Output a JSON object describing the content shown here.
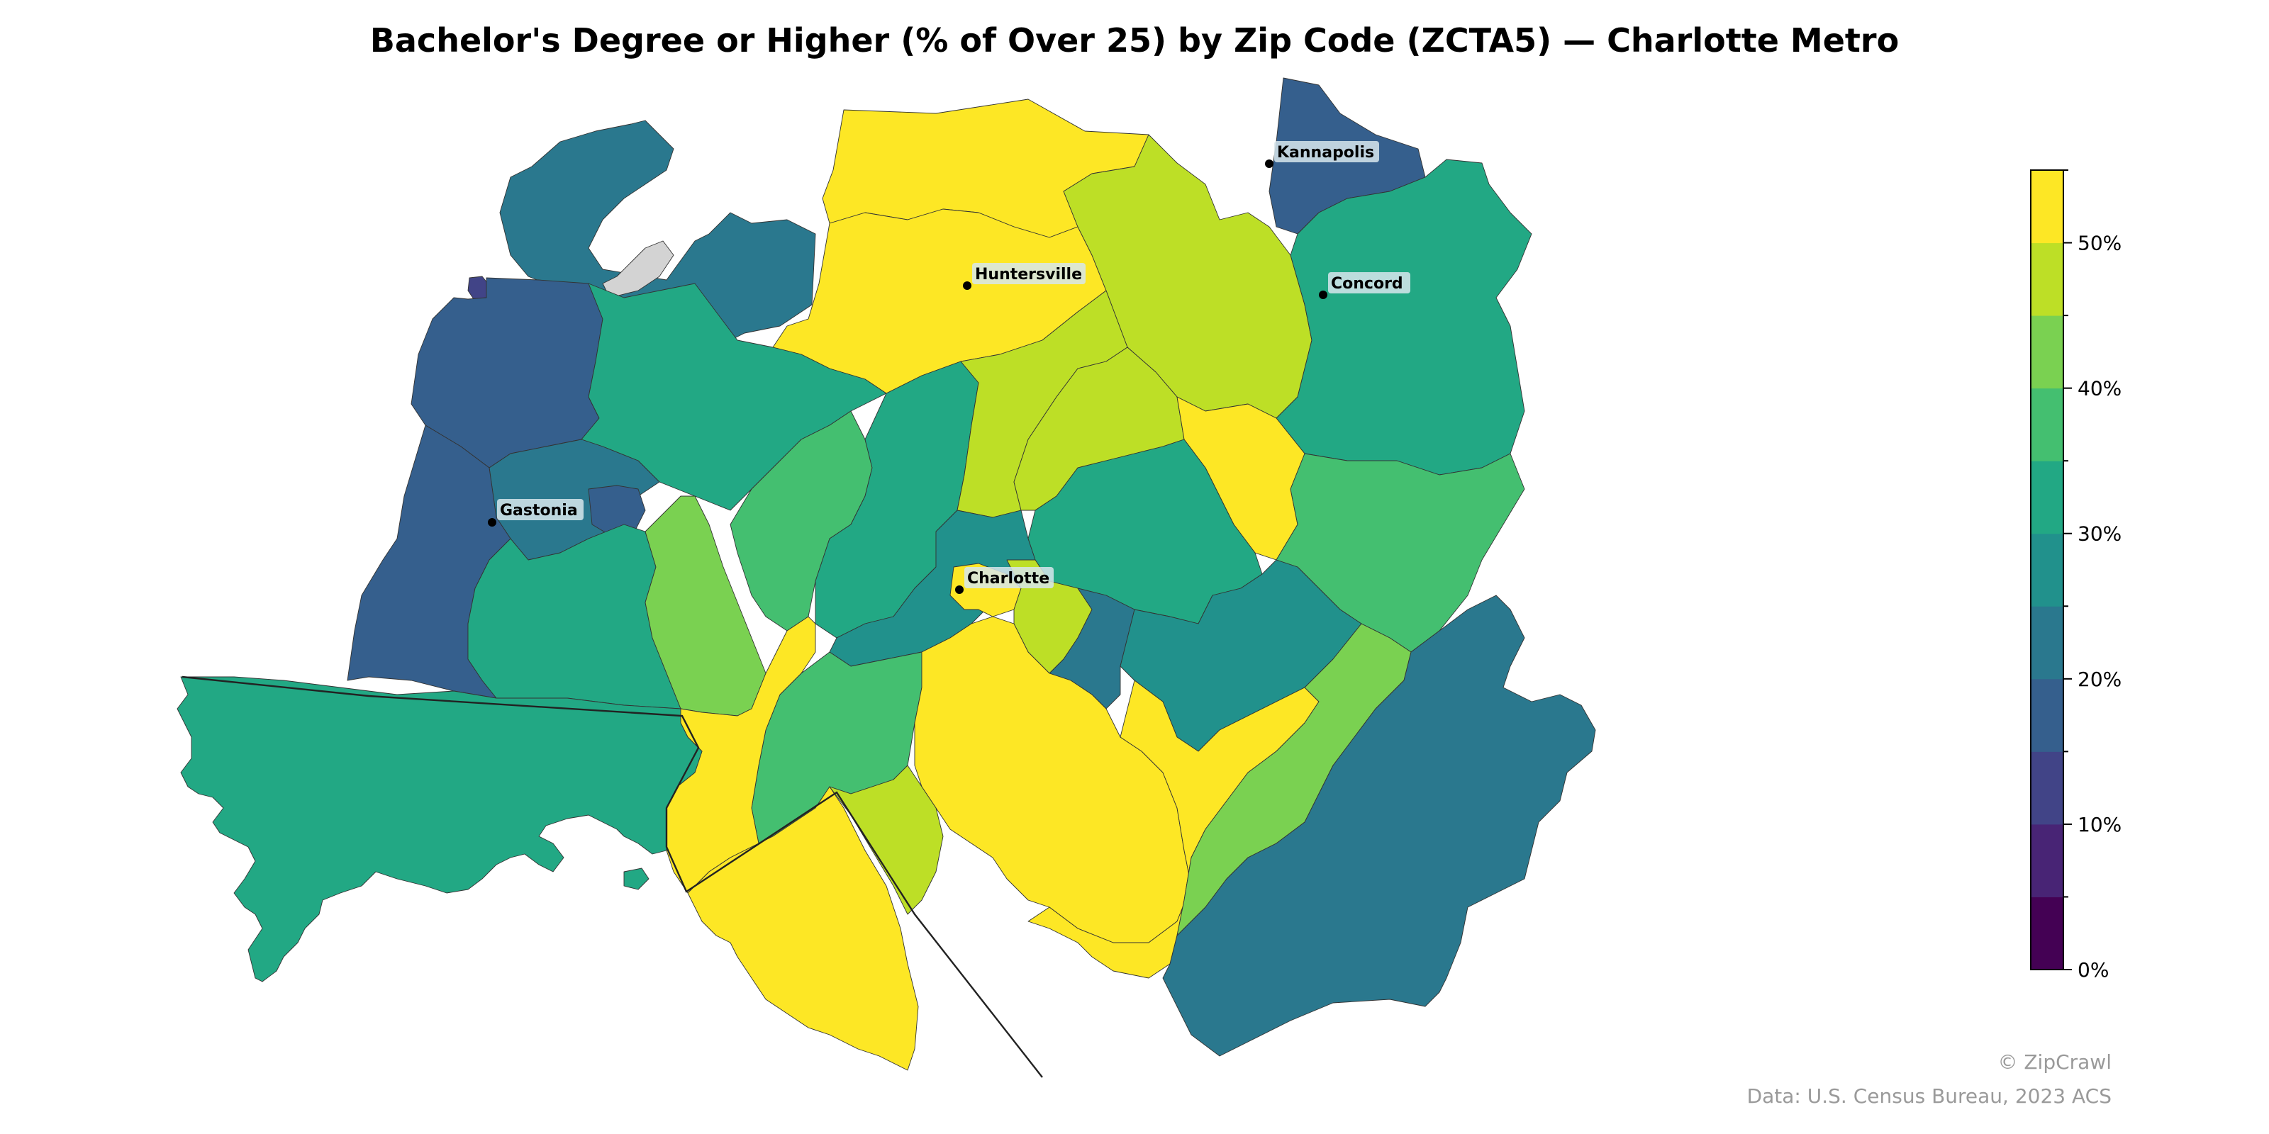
{
  "title": "Bachelor's Degree or Higher (% of Over 25) by Zip Code (ZCTA5) — Charlotte Metro",
  "credit": "© ZipCrawl",
  "source": "Data: U.S. Census Bureau, 2023 ACS",
  "colorbar": {
    "min": 0,
    "max": 55,
    "step": 5,
    "colors": [
      "#440154",
      "#482475",
      "#414487",
      "#355f8d",
      "#2a788e",
      "#21918c",
      "#22a884",
      "#44bf70",
      "#7ad151",
      "#bddf26",
      "#fde725"
    ],
    "tick_labels": [
      "0%",
      "10%",
      "20%",
      "30%",
      "40%",
      "50%"
    ]
  },
  "no_data_color": "#d3d3d3",
  "cities": [
    {
      "name": "Kannapolis"
    },
    {
      "name": "Huntersville"
    },
    {
      "name": "Concord"
    },
    {
      "name": "Gastonia"
    },
    {
      "name": "Charlotte"
    }
  ],
  "regions": [
    {
      "name": "north-lake-norman",
      "value": 53
    },
    {
      "name": "huntersville-south",
      "value": 54
    },
    {
      "name": "davidson-east",
      "value": 45
    },
    {
      "name": "kannapolis-north",
      "value": 19
    },
    {
      "name": "concord-east",
      "value": 32
    },
    {
      "name": "northwest-lincoln",
      "value": 23
    },
    {
      "name": "no-data-zone",
      "value": null
    },
    {
      "name": "small-purple-zone",
      "value": 13
    },
    {
      "name": "west-gaston-north",
      "value": 18
    },
    {
      "name": "mount-holly",
      "value": 31
    },
    {
      "name": "gastonia-center",
      "value": 22
    },
    {
      "name": "gastonia-east-small",
      "value": 15
    },
    {
      "name": "west-gaston-south",
      "value": 17
    },
    {
      "name": "belmont",
      "value": 32
    },
    {
      "name": "belmont-east",
      "value": 43
    },
    {
      "name": "west-charlotte",
      "value": 39
    },
    {
      "name": "northwest-charlotte",
      "value": 30
    },
    {
      "name": "university-west",
      "value": 48
    },
    {
      "name": "university-east",
      "value": 48
    },
    {
      "name": "harrisburg",
      "value": 54
    },
    {
      "name": "northeast-charlotte",
      "value": 31
    },
    {
      "name": "concord-southeast",
      "value": 39
    },
    {
      "name": "airport-area",
      "value": 28
    },
    {
      "name": "uptown-charlotte",
      "value": 54
    },
    {
      "name": "plaza-midwood",
      "value": 48
    },
    {
      "name": "east-charlotte",
      "value": 23
    },
    {
      "name": "mint-hill",
      "value": 26
    },
    {
      "name": "steele-creek",
      "value": 38
    },
    {
      "name": "lake-wylie",
      "value": 53
    },
    {
      "name": "york-county",
      "value": 32
    },
    {
      "name": "fort-mill",
      "value": 53
    },
    {
      "name": "south-charlotte",
      "value": 54
    },
    {
      "name": "pineville-sliver",
      "value": 48
    },
    {
      "name": "matthews-ballantyne",
      "value": 54
    },
    {
      "name": "stallings",
      "value": 43
    },
    {
      "name": "union-county",
      "value": 24
    }
  ]
}
